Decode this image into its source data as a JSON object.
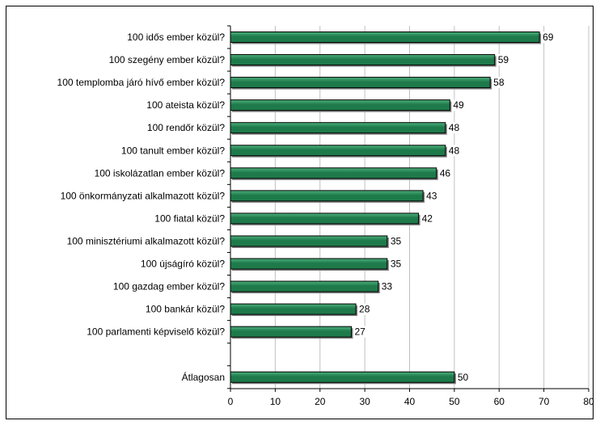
{
  "chart_data": {
    "type": "bar",
    "orientation": "horizontal",
    "categories": [
      "100 idős ember közül?",
      "100 szegény ember közül?",
      "100 templomba járó hívő ember közül?",
      "100 ateista közül?",
      "100 rendőr közül?",
      "100 tanult ember közül?",
      "100 iskolázatlan ember közül?",
      "100 önkormányzati alkalmazott közül?",
      "100 fiatal közül?",
      "100 minisztériumi alkalmazott közül?",
      "100 újságíró közül?",
      "100 gazdag ember közül?",
      "100 bankár közül?",
      "100 parlamenti képviselő közül?",
      "",
      "Átlagosan"
    ],
    "values": [
      69,
      59,
      58,
      49,
      48,
      48,
      46,
      43,
      42,
      35,
      35,
      33,
      28,
      27,
      null,
      50
    ],
    "xlim": [
      0,
      80
    ],
    "xticks": [
      0,
      10,
      20,
      30,
      40,
      50,
      60,
      70,
      80
    ],
    "grid": true,
    "bar_color": "#1e7a4a",
    "bar_highlight": "#4caf7c",
    "bar_border": "#000000",
    "title": "",
    "xlabel": "",
    "ylabel": ""
  }
}
